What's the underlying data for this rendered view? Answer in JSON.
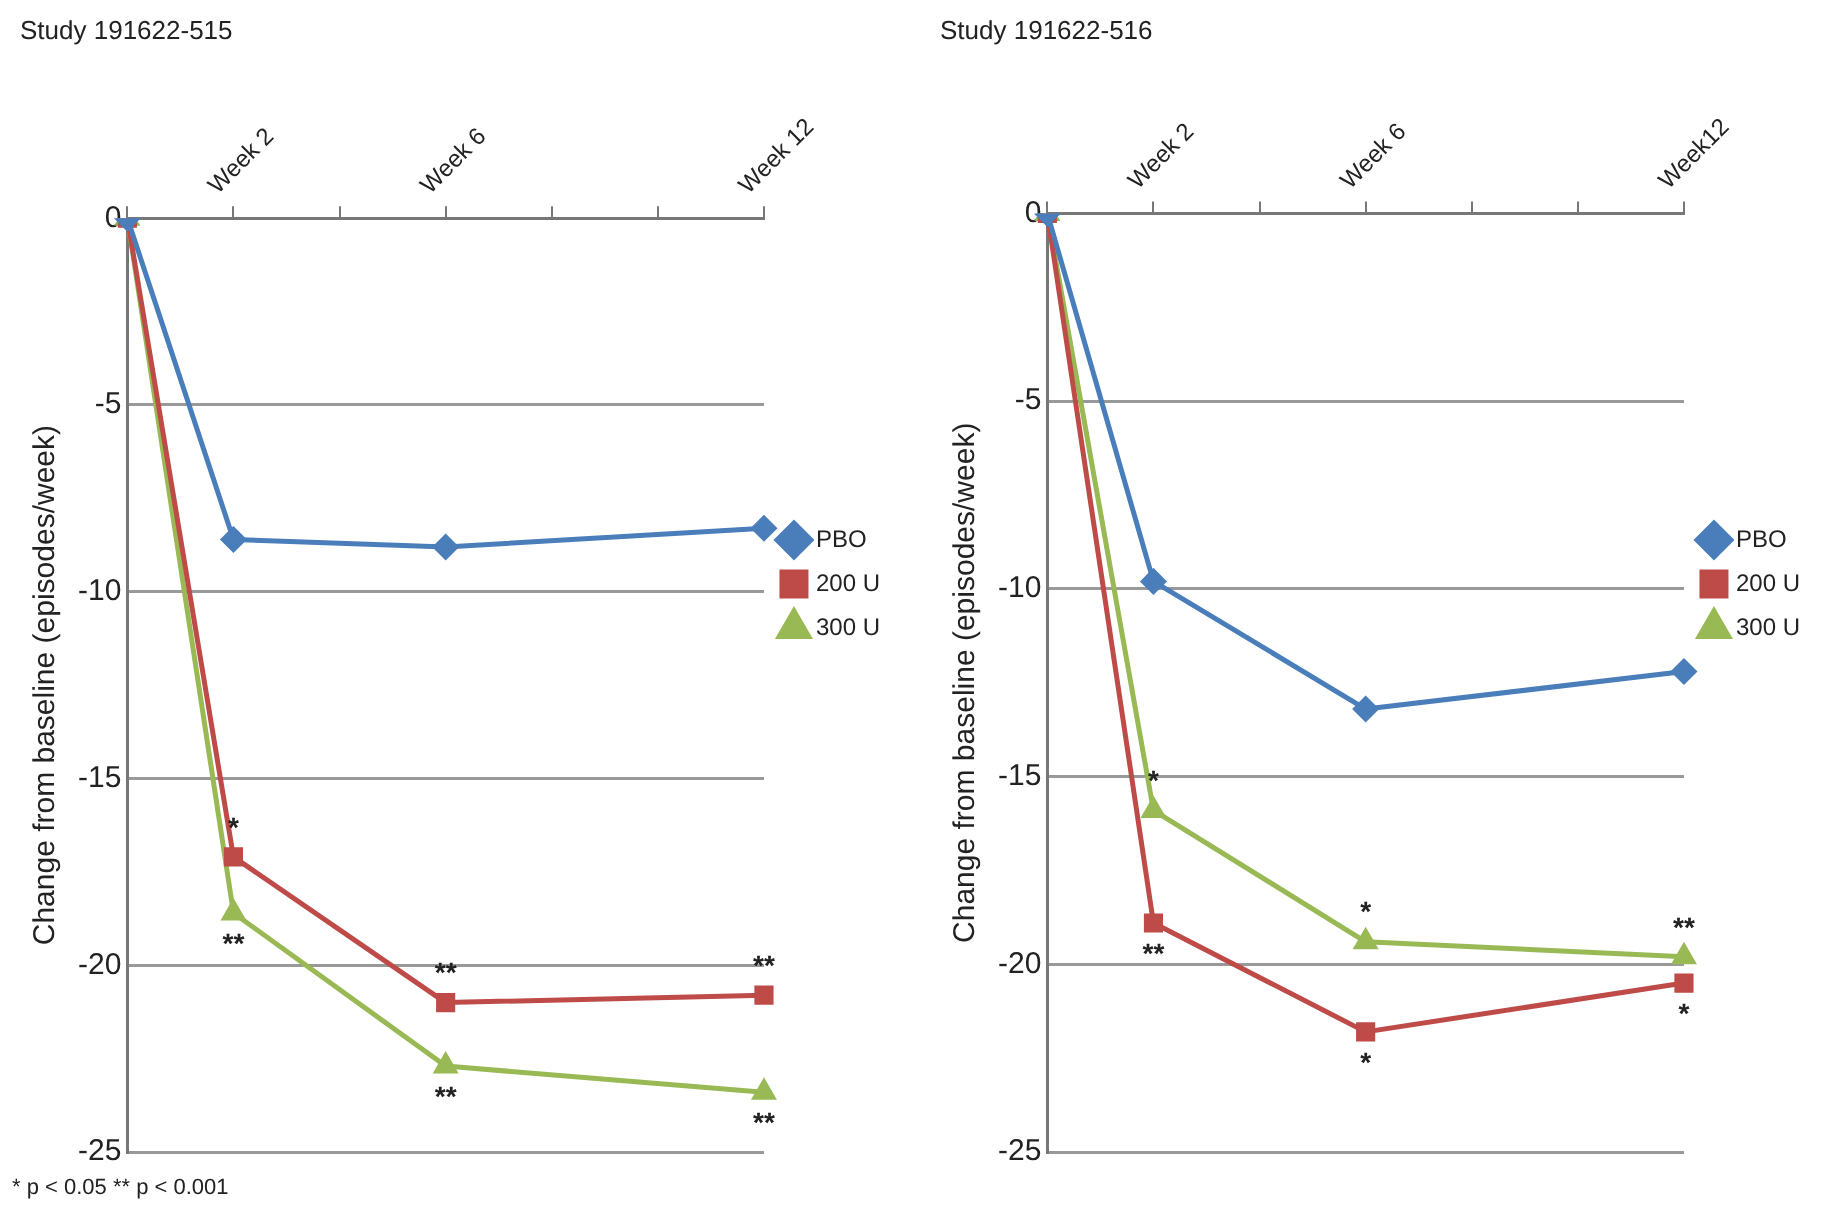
{
  "chart_data": [
    {
      "type": "line",
      "title": "Study 191622-515",
      "ylabel": "Change from baseline (episodes/week)",
      "categories": [
        null,
        "Week 2",
        null,
        "Week 6",
        null,
        null,
        "Week 12"
      ],
      "ylim": [
        -25,
        0
      ],
      "yticks": [
        0,
        -5,
        -10,
        -15,
        -20,
        -25
      ],
      "grid": "y",
      "legend": "right",
      "series": [
        {
          "name": "PBO",
          "color": "#4a7ebb",
          "marker": "diamond",
          "values": [
            0,
            -8.6,
            null,
            -8.8,
            null,
            null,
            -8.3
          ]
        },
        {
          "name": "200 U",
          "color": "#be4b48",
          "marker": "square",
          "values": [
            0,
            -17.1,
            null,
            -21.0,
            null,
            null,
            -20.8
          ]
        },
        {
          "name": "300 U",
          "color": "#98b954",
          "marker": "triangle",
          "values": [
            0,
            -18.6,
            null,
            -22.7,
            null,
            null,
            -23.4
          ]
        }
      ],
      "annotations": [
        {
          "text": "*",
          "x": "Week 2",
          "y": -17.1
        },
        {
          "text": "**",
          "x": "Week 2",
          "y": -18.6
        },
        {
          "text": "**",
          "x": "Week 6",
          "y": -21.0
        },
        {
          "text": "**",
          "x": "Week 6",
          "y": -22.7
        },
        {
          "text": "**",
          "x": "Week 12",
          "y": -20.8
        },
        {
          "text": "**",
          "x": "Week 12",
          "y": -23.4
        },
        "* p < 0.05  ** p < 0.001"
      ]
    },
    {
      "type": "line",
      "title": "Study 191622-516",
      "ylabel": "Change from baseline (episodes/week)",
      "categories": [
        null,
        "Week 2",
        null,
        "Week 6",
        null,
        null,
        "Week12"
      ],
      "ylim": [
        -25,
        0
      ],
      "yticks": [
        0,
        -5,
        -10,
        -15,
        -20,
        -25
      ],
      "grid": "y",
      "legend": "right",
      "series": [
        {
          "name": "PBO",
          "color": "#4a7ebb",
          "marker": "diamond",
          "values": [
            0,
            -9.8,
            null,
            -13.2,
            null,
            null,
            -12.2
          ]
        },
        {
          "name": "200 U",
          "color": "#be4b48",
          "marker": "square",
          "values": [
            0,
            -18.9,
            null,
            -21.8,
            null,
            null,
            -20.5
          ]
        },
        {
          "name": "300 U",
          "color": "#98b954",
          "marker": "triangle",
          "values": [
            0,
            -15.9,
            null,
            -19.4,
            null,
            null,
            -19.8
          ]
        }
      ],
      "annotations": [
        {
          "text": "*",
          "x": "Week 2",
          "y": -15.9
        },
        {
          "text": "**",
          "x": "Week 2",
          "y": -18.9
        },
        {
          "text": "*",
          "x": "Week 6",
          "y": -19.4
        },
        {
          "text": "*",
          "x": "Week 6",
          "y": -21.8
        },
        {
          "text": "**",
          "x": "Week12",
          "y": -19.8
        },
        {
          "text": "*",
          "x": "Week12",
          "y": -20.5
        }
      ]
    }
  ]
}
